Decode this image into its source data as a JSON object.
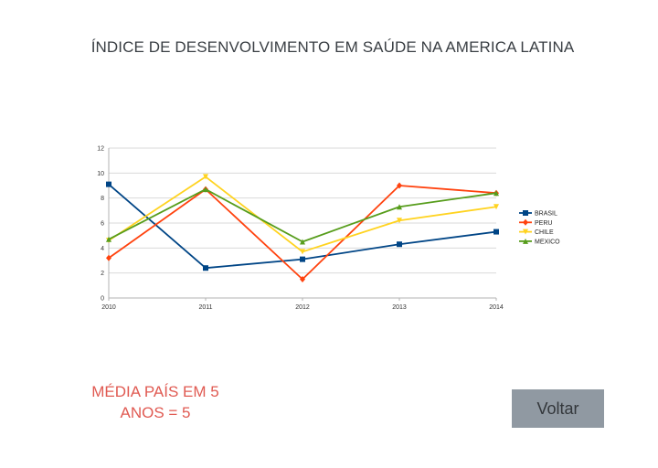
{
  "page": {
    "title": "ÍNDICE DE DESENVOLVIMENTO EM SAÚDE NA AMERICA LATINA",
    "note_line1": "MÉDIA  PAÍS EM 5",
    "note_line2": "ANOS  = 5",
    "back_label": "Voltar"
  },
  "chart_data": {
    "type": "line",
    "title": "ÍNDICE DE DESENVOLVIMENTO EM SAÚDE NA AMERICA LATINA",
    "xlabel": "",
    "ylabel": "",
    "categories": [
      "2010",
      "2011",
      "2012",
      "2013",
      "2014"
    ],
    "ylim": [
      0,
      12
    ],
    "yticks": [
      0,
      2,
      4,
      6,
      8,
      10,
      12
    ],
    "grid": true,
    "legend": "right",
    "series": [
      {
        "name": "BRASIL",
        "color": "#004586",
        "marker": "square",
        "values": [
          9.1,
          2.4,
          3.1,
          4.3,
          5.3
        ]
      },
      {
        "name": "PERU",
        "color": "#ff420e",
        "marker": "diamond",
        "values": [
          3.2,
          8.7,
          1.5,
          9.0,
          8.4
        ]
      },
      {
        "name": "CHILE",
        "color": "#ffd320",
        "marker": "arrow-down",
        "values": [
          4.6,
          9.7,
          3.7,
          6.2,
          7.3
        ]
      },
      {
        "name": "MEXICO",
        "color": "#579d1c",
        "marker": "triangle",
        "values": [
          4.7,
          8.7,
          4.5,
          7.3,
          8.4
        ]
      }
    ]
  }
}
